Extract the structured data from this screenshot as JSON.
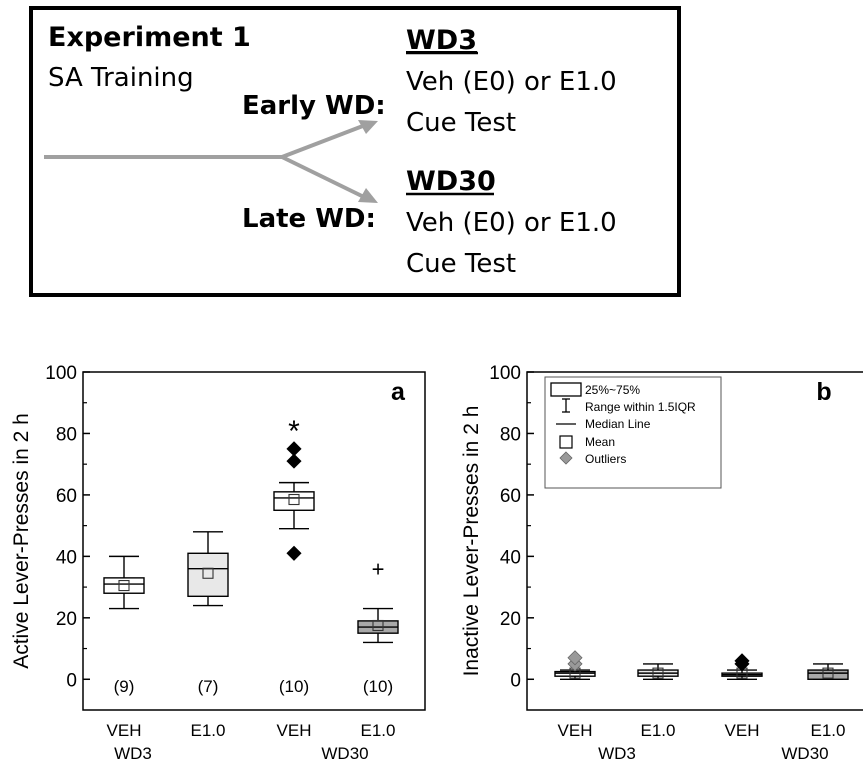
{
  "diagram": {
    "title": "Experiment 1",
    "training": "SA Training",
    "early_label": "Early WD:",
    "late_label": "Late WD:",
    "early": {
      "heading": "WD3",
      "line1": "Veh (E0) or E1.0",
      "line2": "Cue Test"
    },
    "late": {
      "heading": "WD30",
      "line1": "Veh (E0) or E1.0",
      "line2": "Cue Test"
    },
    "colors": {
      "arrow": "#a0a0a0",
      "border": "#000000"
    }
  },
  "chart_data": [
    {
      "type": "box",
      "panel_label": "a",
      "ylabel": "Active Lever-Presses in 2 h",
      "ylim": [
        -10,
        100
      ],
      "yticks": [
        0,
        20,
        40,
        60,
        80,
        100
      ],
      "categories": [
        "VEH",
        "E1.0",
        "VEH",
        "E1.0"
      ],
      "groups": [
        {
          "name": "WD3",
          "span": [
            0,
            1
          ]
        },
        {
          "name": "WD30",
          "span": [
            2,
            3
          ]
        }
      ],
      "n_labels": [
        "(9)",
        "(7)",
        "(10)",
        "(10)"
      ],
      "boxes": [
        {
          "whisker_low": 23,
          "q1": 28,
          "median": 31,
          "q3": 33,
          "whisker_high": 40,
          "mean": 30.5,
          "outliers": [],
          "fill": "#ffffff"
        },
        {
          "whisker_low": 24,
          "q1": 27,
          "median": 36,
          "q3": 41,
          "whisker_high": 48,
          "mean": 34.5,
          "outliers": [],
          "fill": "#e8e8e8"
        },
        {
          "whisker_low": 49,
          "q1": 55,
          "median": 59,
          "q3": 61,
          "whisker_high": 64,
          "mean": 58.5,
          "outliers": [
            41,
            71,
            75
          ],
          "outlier_color": "#000000",
          "fill": "#ffffff"
        },
        {
          "whisker_low": 12,
          "q1": 15,
          "median": 17,
          "q3": 19,
          "whisker_high": 23,
          "mean": 17.5,
          "outliers": [],
          "fill": "#a8a8a8"
        }
      ],
      "annotations": [
        {
          "text": "*",
          "category": 2,
          "y": 84
        },
        {
          "text": "+",
          "category": 3,
          "y": 36
        }
      ]
    },
    {
      "type": "box",
      "panel_label": "b",
      "ylabel": "Inactive Lever-Presses in 2 h",
      "ylim": [
        -10,
        100
      ],
      "yticks": [
        0,
        20,
        40,
        60,
        80,
        100
      ],
      "categories": [
        "VEH",
        "E1.0",
        "VEH",
        "E1.0"
      ],
      "groups": [
        {
          "name": "WD3",
          "span": [
            0,
            1
          ]
        },
        {
          "name": "WD30",
          "span": [
            2,
            3
          ]
        }
      ],
      "boxes": [
        {
          "whisker_low": 0,
          "q1": 1,
          "median": 2,
          "q3": 2.5,
          "whisker_high": 3,
          "mean": 2,
          "outliers": [
            5,
            7
          ],
          "outlier_color": "#999999",
          "fill": "#ffffff"
        },
        {
          "whisker_low": 0,
          "q1": 1,
          "median": 2,
          "q3": 3,
          "whisker_high": 5,
          "mean": 2,
          "outliers": [],
          "fill": "#e8e8e8"
        },
        {
          "whisker_low": 0,
          "q1": 1,
          "median": 1.5,
          "q3": 2,
          "whisker_high": 3,
          "mean": 2,
          "outliers": [
            5,
            6
          ],
          "outlier_color": "#000000",
          "fill": "#ffffff"
        },
        {
          "whisker_low": 0,
          "q1": 0,
          "median": 2,
          "q3": 3,
          "whisker_high": 5,
          "mean": 2,
          "outliers": [],
          "fill": "#a8a8a8"
        }
      ],
      "legend": {
        "placement": "top-left",
        "entries": [
          "25%~75%",
          "Range within 1.5IQR",
          "Median Line",
          "Mean",
          "Outliers"
        ]
      }
    }
  ]
}
